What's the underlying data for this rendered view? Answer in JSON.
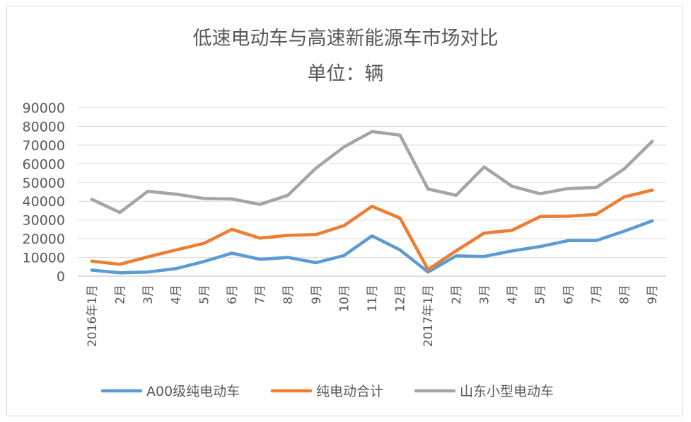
{
  "chart_data": {
    "type": "line",
    "title": "低速电动车与高速新能源车市场对比",
    "subtitle": "单位：辆",
    "categories": [
      "2016年1月",
      "2月",
      "3月",
      "4月",
      "5月",
      "6月",
      "7月",
      "8月",
      "9月",
      "10月",
      "11月",
      "12月",
      "2017年1月",
      "2月",
      "3月",
      "4月",
      "5月",
      "6月",
      "7月",
      "8月",
      "9月"
    ],
    "y_ticks": [
      "90000",
      "80000",
      "70000",
      "60000",
      "50000",
      "40000",
      "30000",
      "20000",
      "10000",
      "0"
    ],
    "ylim": [
      0,
      90000
    ],
    "grid": true,
    "legend_position": "bottom",
    "series": [
      {
        "name": "A00级纯电动车",
        "color": "#5b9bd5",
        "values": [
          3200,
          1800,
          2200,
          4000,
          7800,
          12300,
          9000,
          10000,
          7200,
          11000,
          21500,
          14000,
          2200,
          10800,
          10500,
          13500,
          15800,
          19000,
          19000,
          24000,
          29500
        ]
      },
      {
        "name": "纯电动合计",
        "color": "#ed7d31",
        "values": [
          8000,
          6300,
          10300,
          14000,
          17500,
          25000,
          20300,
          21800,
          22200,
          27000,
          37300,
          31000,
          3500,
          13500,
          23000,
          24500,
          31800,
          32000,
          33000,
          42300,
          46000
        ]
      },
      {
        "name": "山东小型电动车",
        "color": "#a5a5a5",
        "values": [
          41000,
          34000,
          45300,
          43800,
          41500,
          41200,
          38300,
          43200,
          57700,
          69000,
          77200,
          75300,
          46500,
          43200,
          58300,
          48000,
          44000,
          46800,
          47300,
          57300,
          72000
        ]
      }
    ]
  }
}
